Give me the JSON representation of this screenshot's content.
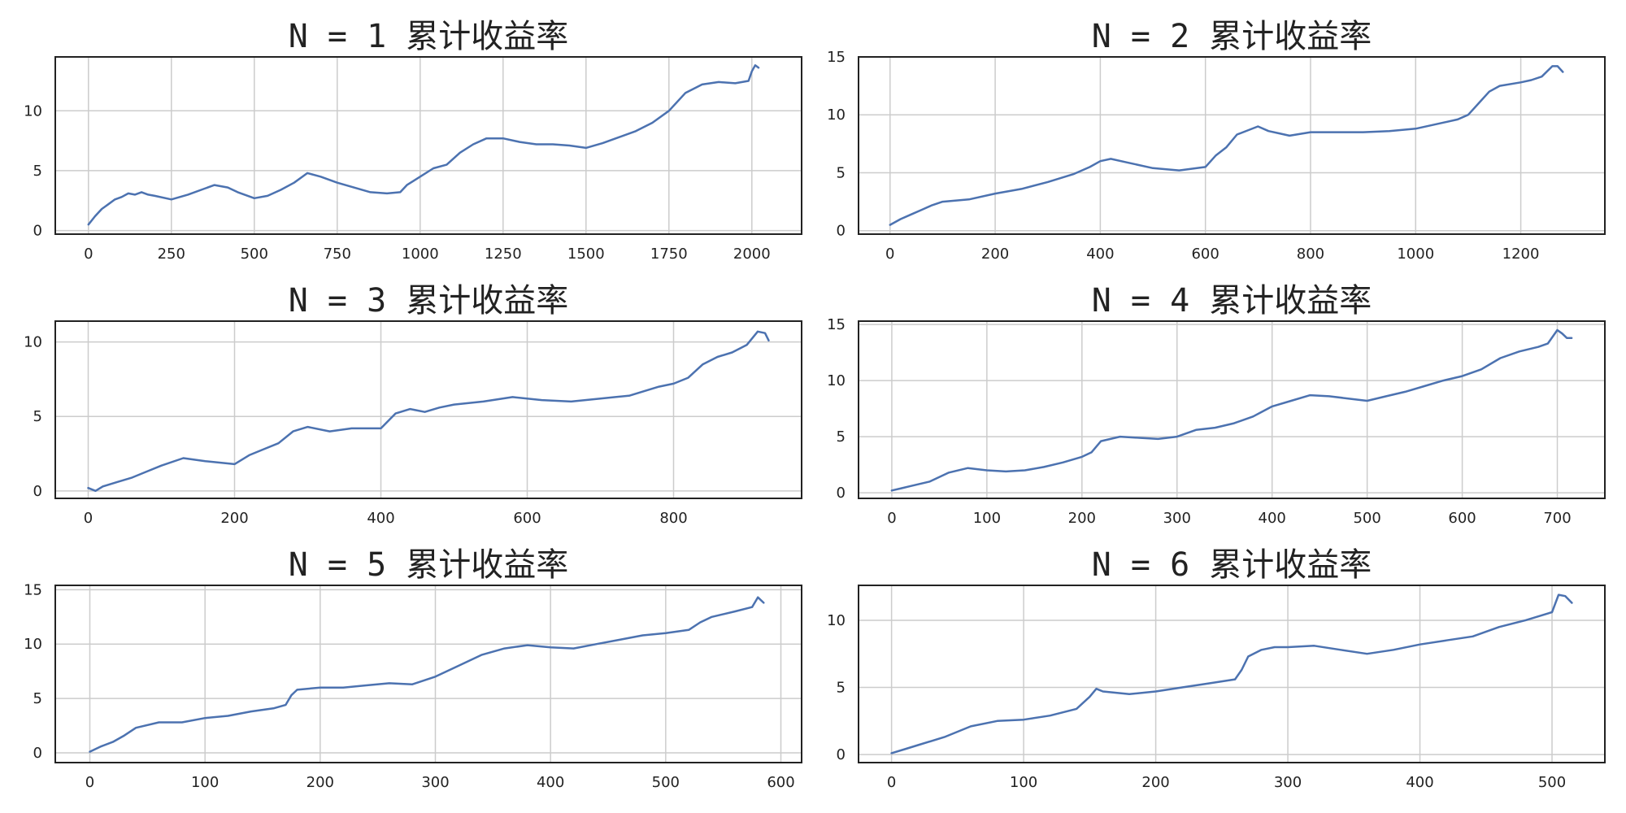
{
  "colors": {
    "line": "#4c72b0",
    "grid": "#cccccc",
    "frame": "#222222",
    "background": "#ffffff"
  },
  "chart_data": [
    {
      "type": "line",
      "title": "N = 1 累计收益率",
      "xlim": [
        -100,
        2150
      ],
      "ylim": [
        -0.3,
        14.5
      ],
      "xticks": [
        0,
        250,
        500,
        750,
        1000,
        1250,
        1500,
        1750,
        2000
      ],
      "yticks": [
        0,
        5,
        10
      ],
      "grid": true,
      "series": [
        {
          "x": [
            0,
            20,
            40,
            60,
            80,
            100,
            120,
            140,
            160,
            180,
            200,
            250,
            300,
            350,
            380,
            420,
            450,
            500,
            540,
            580,
            620,
            660,
            700,
            750,
            800,
            850,
            900,
            940,
            960,
            1000,
            1040,
            1080,
            1120,
            1160,
            1200,
            1250,
            1300,
            1350,
            1400,
            1450,
            1500,
            1550,
            1600,
            1650,
            1700,
            1750,
            1800,
            1850,
            1900,
            1950,
            1990,
            2000,
            2010,
            2020
          ],
          "y": [
            0.5,
            1.2,
            1.8,
            2.2,
            2.6,
            2.8,
            3.1,
            3.0,
            3.2,
            3.0,
            2.9,
            2.6,
            3.0,
            3.5,
            3.8,
            3.6,
            3.2,
            2.7,
            2.9,
            3.4,
            4.0,
            4.8,
            4.5,
            4.0,
            3.6,
            3.2,
            3.1,
            3.2,
            3.8,
            4.5,
            5.2,
            5.5,
            6.5,
            7.2,
            7.7,
            7.7,
            7.4,
            7.2,
            7.2,
            7.1,
            6.9,
            7.3,
            7.8,
            8.3,
            9.0,
            10.0,
            11.5,
            12.2,
            12.4,
            12.3,
            12.5,
            13.3,
            13.8,
            13.6
          ]
        }
      ]
    },
    {
      "type": "line",
      "title": "N = 2 累计收益率",
      "xlim": [
        -60,
        1360
      ],
      "ylim": [
        -0.3,
        15.0
      ],
      "xticks": [
        0,
        200,
        400,
        600,
        800,
        1000,
        1200
      ],
      "yticks": [
        0,
        5,
        10,
        15
      ],
      "grid": true,
      "series": [
        {
          "x": [
            0,
            20,
            40,
            60,
            80,
            100,
            150,
            200,
            250,
            300,
            350,
            380,
            400,
            420,
            450,
            500,
            550,
            600,
            620,
            640,
            660,
            700,
            720,
            740,
            760,
            800,
            850,
            900,
            950,
            1000,
            1050,
            1080,
            1100,
            1120,
            1140,
            1160,
            1200,
            1220,
            1240,
            1260,
            1270,
            1280
          ],
          "y": [
            0.5,
            1.0,
            1.4,
            1.8,
            2.2,
            2.5,
            2.7,
            3.2,
            3.6,
            4.2,
            4.9,
            5.5,
            6.0,
            6.2,
            5.9,
            5.4,
            5.2,
            5.5,
            6.5,
            7.2,
            8.3,
            9.0,
            8.6,
            8.4,
            8.2,
            8.5,
            8.5,
            8.5,
            8.6,
            8.8,
            9.3,
            9.6,
            10.0,
            11.0,
            12.0,
            12.5,
            12.8,
            13.0,
            13.3,
            14.2,
            14.2,
            13.7
          ]
        }
      ]
    },
    {
      "type": "line",
      "title": "N = 3 累计收益率",
      "xlim": [
        -45,
        975
      ],
      "ylim": [
        -0.5,
        11.4
      ],
      "xticks": [
        0,
        200,
        400,
        600,
        800
      ],
      "yticks": [
        0,
        5,
        10
      ],
      "grid": true,
      "series": [
        {
          "x": [
            0,
            10,
            20,
            40,
            60,
            80,
            100,
            130,
            160,
            200,
            220,
            240,
            260,
            280,
            300,
            330,
            360,
            380,
            400,
            420,
            440,
            460,
            480,
            500,
            540,
            580,
            620,
            660,
            700,
            740,
            780,
            800,
            820,
            840,
            860,
            880,
            900,
            910,
            915,
            925,
            930
          ],
          "y": [
            0.2,
            0.0,
            0.3,
            0.6,
            0.9,
            1.3,
            1.7,
            2.2,
            2.0,
            1.8,
            2.4,
            2.8,
            3.2,
            4.0,
            4.3,
            4.0,
            4.2,
            4.2,
            4.2,
            5.2,
            5.5,
            5.3,
            5.6,
            5.8,
            6.0,
            6.3,
            6.1,
            6.0,
            6.2,
            6.4,
            7.0,
            7.2,
            7.6,
            8.5,
            9.0,
            9.3,
            9.8,
            10.4,
            10.7,
            10.6,
            10.1
          ]
        }
      ]
    },
    {
      "type": "line",
      "title": "N = 4 累计收益率",
      "xlim": [
        -35,
        750
      ],
      "ylim": [
        -0.5,
        15.3
      ],
      "xticks": [
        0,
        100,
        200,
        300,
        400,
        500,
        600,
        700
      ],
      "yticks": [
        0,
        5,
        10,
        15
      ],
      "grid": true,
      "series": [
        {
          "x": [
            0,
            10,
            20,
            40,
            60,
            80,
            100,
            120,
            140,
            160,
            180,
            200,
            210,
            220,
            240,
            260,
            280,
            300,
            320,
            340,
            360,
            380,
            400,
            420,
            440,
            460,
            480,
            500,
            520,
            540,
            560,
            580,
            600,
            620,
            640,
            660,
            680,
            690,
            700,
            705,
            710,
            715
          ],
          "y": [
            0.2,
            0.4,
            0.6,
            1.0,
            1.8,
            2.2,
            2.0,
            1.9,
            2.0,
            2.3,
            2.7,
            3.2,
            3.6,
            4.6,
            5.0,
            4.9,
            4.8,
            5.0,
            5.6,
            5.8,
            6.2,
            6.8,
            7.7,
            8.2,
            8.7,
            8.6,
            8.4,
            8.2,
            8.6,
            9.0,
            9.5,
            10.0,
            10.4,
            11.0,
            12.0,
            12.6,
            13.0,
            13.3,
            14.5,
            14.2,
            13.8,
            13.8
          ]
        }
      ]
    },
    {
      "type": "line",
      "title": "N = 5 累计收益率",
      "xlim": [
        -30,
        618
      ],
      "ylim": [
        -0.9,
        15.4
      ],
      "xticks": [
        0,
        100,
        200,
        300,
        400,
        500,
        600
      ],
      "yticks": [
        0,
        5,
        10,
        15
      ],
      "grid": true,
      "series": [
        {
          "x": [
            0,
            10,
            20,
            30,
            40,
            60,
            80,
            100,
            120,
            140,
            160,
            170,
            175,
            180,
            200,
            220,
            240,
            260,
            280,
            300,
            320,
            340,
            360,
            380,
            400,
            420,
            440,
            460,
            480,
            500,
            520,
            530,
            540,
            560,
            575,
            580,
            585
          ],
          "y": [
            0.1,
            0.6,
            1.0,
            1.6,
            2.3,
            2.8,
            2.8,
            3.2,
            3.4,
            3.8,
            4.1,
            4.4,
            5.3,
            5.8,
            6.0,
            6.0,
            6.2,
            6.4,
            6.3,
            7.0,
            8.0,
            9.0,
            9.6,
            9.9,
            9.7,
            9.6,
            10.0,
            10.4,
            10.8,
            11.0,
            11.3,
            12.0,
            12.5,
            13.0,
            13.4,
            14.3,
            13.8
          ]
        }
      ]
    },
    {
      "type": "line",
      "title": "N = 6 累计收益率",
      "xlim": [
        -25,
        540
      ],
      "ylim": [
        -0.6,
        12.6
      ],
      "xticks": [
        0,
        100,
        200,
        300,
        400,
        500
      ],
      "yticks": [
        0,
        5,
        10
      ],
      "grid": true,
      "series": [
        {
          "x": [
            0,
            10,
            20,
            40,
            60,
            80,
            100,
            120,
            140,
            150,
            155,
            160,
            180,
            200,
            220,
            240,
            260,
            265,
            270,
            280,
            290,
            300,
            320,
            340,
            360,
            380,
            400,
            420,
            440,
            460,
            480,
            500,
            505,
            510,
            515
          ],
          "y": [
            0.1,
            0.4,
            0.7,
            1.3,
            2.1,
            2.5,
            2.6,
            2.9,
            3.4,
            4.3,
            4.9,
            4.7,
            4.5,
            4.7,
            5.0,
            5.3,
            5.6,
            6.3,
            7.3,
            7.8,
            8.0,
            8.0,
            8.1,
            7.8,
            7.5,
            7.8,
            8.2,
            8.5,
            8.8,
            9.5,
            10.0,
            10.6,
            11.9,
            11.8,
            11.3
          ]
        }
      ]
    }
  ]
}
